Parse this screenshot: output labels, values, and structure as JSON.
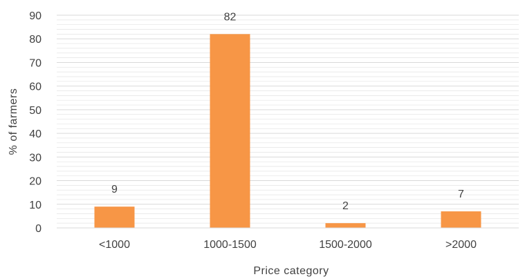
{
  "chart_data": {
    "type": "bar",
    "categories": [
      "<1000",
      "1000-1500",
      "1500-2000",
      ">2000"
    ],
    "values": [
      9,
      82,
      2,
      7
    ],
    "data_labels": [
      "9",
      "82",
      "2",
      "7"
    ],
    "xlabel": "Price category",
    "ylabel": "% of farmers",
    "ylim": [
      0,
      90
    ],
    "yticks": [
      0,
      10,
      20,
      30,
      40,
      50,
      60,
      70,
      80,
      90
    ],
    "grid": true,
    "bar_color": "#F79646",
    "grid_color": "#e3e3e3",
    "axis_color": "#d9d9d9"
  }
}
